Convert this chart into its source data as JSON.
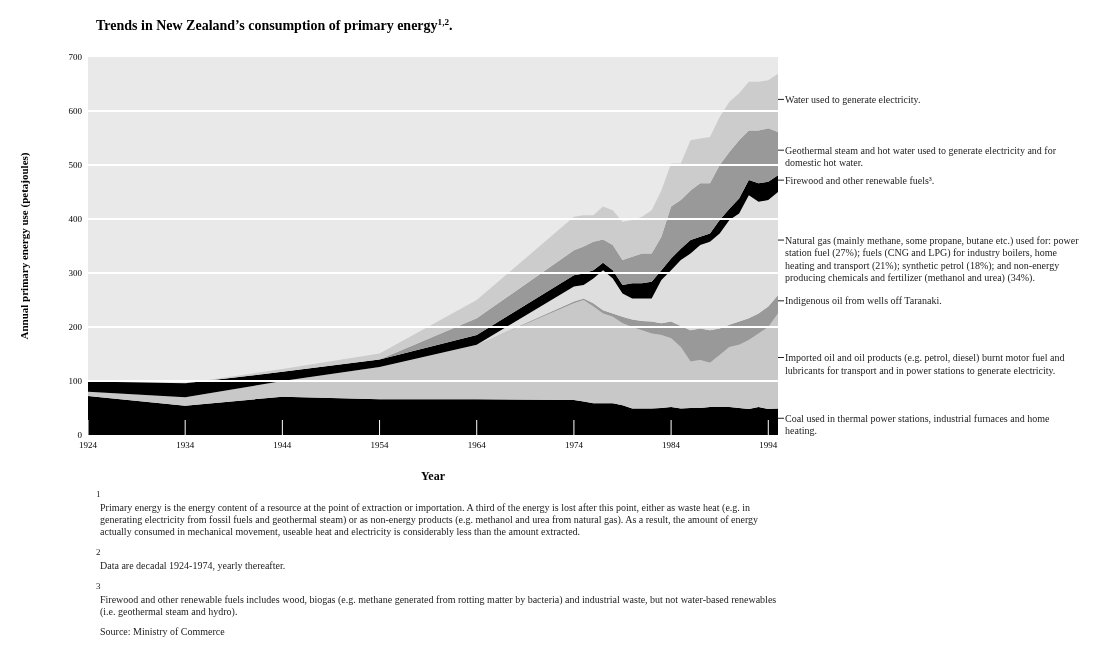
{
  "chart_data": {
    "type": "area",
    "stacked": true,
    "title": "Trends in New Zealand’s consumption of primary energy$^{1,2}$.",
    "xlabel": "Year",
    "ylabel": "Annual primary energy use (petajoules)",
    "x": [
      1924,
      1934,
      1944,
      1954,
      1964,
      1974,
      1975,
      1976,
      1977,
      1978,
      1979,
      1980,
      1981,
      1982,
      1983,
      1984,
      1985,
      1986,
      1987,
      1988,
      1989,
      1990,
      1991,
      1992,
      1993,
      1994,
      1995
    ],
    "series": [
      {
        "name": "Coal used in thermal power stations, industrial furnaces and home heating.",
        "color": "#000000",
        "values": [
          72,
          54,
          71,
          66,
          66,
          65,
          62,
          59,
          59,
          59,
          55,
          49,
          49,
          49,
          50,
          52,
          49,
          50,
          50,
          52,
          52,
          52,
          50,
          48,
          52,
          48,
          49
        ]
      },
      {
        "name": "Imported oil and oil products (e.g. petrol, diesel) burnt motor fuel and lubricants for transport and in power stations to generate electricity.",
        "color": "#c8c8c8",
        "values": [
          8,
          16,
          29,
          60,
          101,
          179,
          188,
          179,
          166,
          160,
          152,
          151,
          145,
          139,
          135,
          127,
          114,
          86,
          89,
          82,
          96,
          111,
          117,
          128,
          136,
          152,
          176
        ]
      },
      {
        "name": "Indigenous oil from wells off Taranaki.",
        "color": "#999999",
        "values": [
          0,
          0,
          0,
          0,
          0,
          3,
          3,
          6,
          6,
          6,
          12,
          14,
          17,
          22,
          22,
          31,
          39,
          58,
          58,
          60,
          49,
          41,
          43,
          40,
          37,
          38,
          34
        ]
      },
      {
        "name": "Natural gas (mainly methane, some propane, butane etc.) used for: power station fuel (27%); fuels (CNG and LPG) for industry boilers, home heating and transport (21%); synthetic petrol (18%); and non-energy producing chemicals and fertilizer (methanol and urea) (34%).",
        "color": "#dedede",
        "values": [
          0,
          0,
          0,
          0,
          0,
          28,
          25,
          46,
          74,
          65,
          43,
          39,
          42,
          43,
          80,
          95,
          122,
          142,
          155,
          164,
          176,
          194,
          200,
          228,
          207,
          197,
          191
        ]
      },
      {
        "name": "Firewood and other renewable fuels³.",
        "color": "#000000",
        "values": [
          19,
          26,
          17,
          14,
          18,
          21,
          21,
          15,
          14,
          15,
          16,
          28,
          28,
          31,
          18,
          22,
          21,
          25,
          15,
          15,
          25,
          21,
          28,
          28,
          34,
          34,
          31
        ]
      },
      {
        "name": "Geothermal steam and hot water used to generate electricity and for domestic hot water.",
        "color": "#999999",
        "values": [
          0,
          0,
          0,
          0,
          31,
          46,
          50,
          53,
          43,
          47,
          46,
          49,
          55,
          52,
          62,
          96,
          90,
          92,
          99,
          93,
          102,
          105,
          108,
          92,
          98,
          99,
          80
        ]
      },
      {
        "name": "Water used to generate electricity.",
        "color": "#cccccc",
        "values": [
          0,
          0,
          5,
          11,
          34,
          62,
          58,
          49,
          61,
          64,
          71,
          68,
          68,
          80,
          86,
          80,
          68,
          93,
          83,
          86,
          89,
          93,
          87,
          90,
          90,
          89,
          108
        ]
      }
    ],
    "xlim": [
      1924,
      1995
    ],
    "xticks": [
      1924,
      1934,
      1944,
      1954,
      1964,
      1974,
      1984,
      1994
    ],
    "ylim": [
      0,
      700
    ],
    "yticks": [
      0,
      100,
      200,
      300,
      400,
      500,
      600,
      700
    ],
    "grid": "y",
    "annotations": [
      "1",
      "Primary energy is the energy content of a resource at the point of extraction or importation. A third of the energy is lost after this point, either as waste heat (e.g. in generating electricity from fossil fuels and geothermal steam) or as non-energy products (e.g. methanol and urea from natural gas). As a result, the amount of energy actually consumed in mechanical movement, useable heat and electricity is considerably less than the amount extracted.",
      "2",
      "Data are decadal 1924-1974, yearly thereafter.",
      "3",
      "Firewood and other renewable fuels includes wood, biogas (e.g. methane generated from rotting matter by bacteria) and industrial waste, but not water-based renewables (i.e. geothermal steam and hydro).",
      "Source: Ministry of Commerce"
    ]
  }
}
